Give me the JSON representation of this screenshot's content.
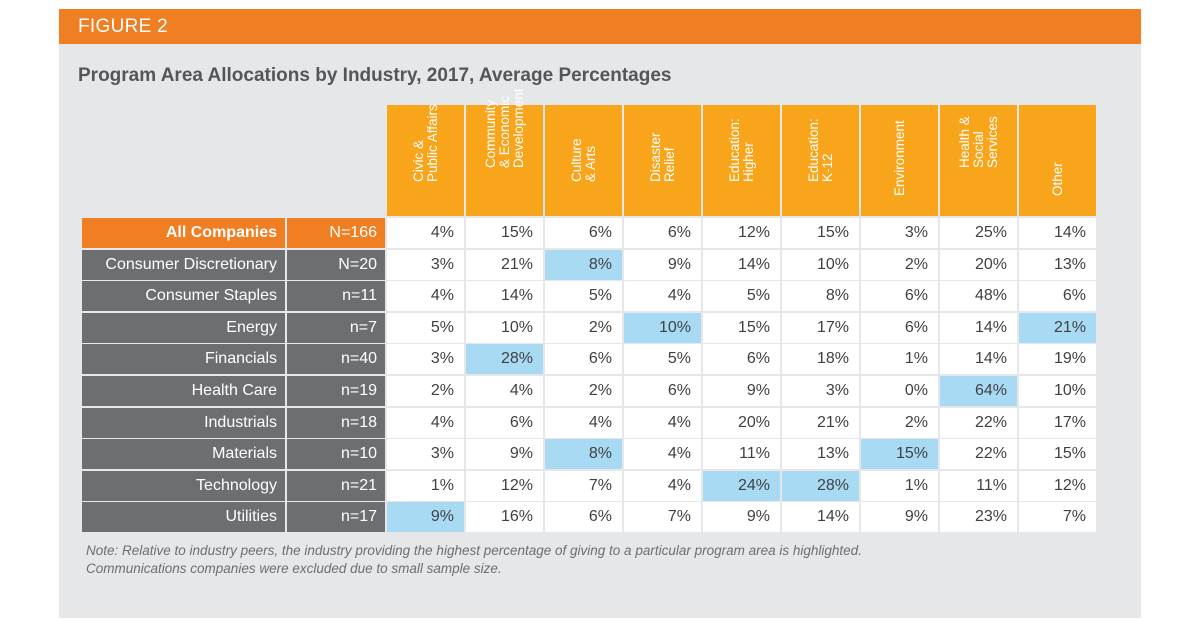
{
  "figure_label": "FIGURE 2",
  "chart_data": {
    "type": "table",
    "title": "Program Area Allocations by Industry, 2017, Average Percentages",
    "columns": [
      "Civic & Public Affairs",
      "Community & Economic Development",
      "Culture & Arts",
      "Disaster Relief",
      "Education: Higher",
      "Education: K-12",
      "Environment",
      "Health & Social Services",
      "Other"
    ],
    "column_lines": [
      [
        "Civic &",
        "Public Affairs"
      ],
      [
        "Community",
        "& Economic",
        "Development"
      ],
      [
        "Culture",
        "& Arts"
      ],
      [
        "Disaster",
        "Relief"
      ],
      [
        "Education:",
        "Higher"
      ],
      [
        "Education:",
        "K-12"
      ],
      [
        "Environment"
      ],
      [
        "Health &",
        "Social",
        "Services"
      ],
      [
        "Other"
      ]
    ],
    "rows": [
      {
        "label": "All Companies",
        "n": "N=166",
        "values": [
          "4%",
          "15%",
          "6%",
          "6%",
          "12%",
          "15%",
          "3%",
          "25%",
          "14%"
        ],
        "highlight": [],
        "summary": true
      },
      {
        "label": "Consumer Discretionary",
        "n": "N=20",
        "values": [
          "3%",
          "21%",
          "8%",
          "9%",
          "14%",
          "10%",
          "2%",
          "20%",
          "13%"
        ],
        "highlight": [
          2
        ]
      },
      {
        "label": "Consumer Staples",
        "n": "n=11",
        "values": [
          "4%",
          "14%",
          "5%",
          "4%",
          "5%",
          "8%",
          "6%",
          "48%",
          "6%"
        ],
        "highlight": []
      },
      {
        "label": "Energy",
        "n": "n=7",
        "values": [
          "5%",
          "10%",
          "2%",
          "10%",
          "15%",
          "17%",
          "6%",
          "14%",
          "21%"
        ],
        "highlight": [
          3,
          8
        ]
      },
      {
        "label": "Financials",
        "n": "n=40",
        "values": [
          "3%",
          "28%",
          "6%",
          "5%",
          "6%",
          "18%",
          "1%",
          "14%",
          "19%"
        ],
        "highlight": [
          1
        ]
      },
      {
        "label": "Health Care",
        "n": "n=19",
        "values": [
          "2%",
          "4%",
          "2%",
          "6%",
          "9%",
          "3%",
          "0%",
          "64%",
          "10%"
        ],
        "highlight": [
          7
        ]
      },
      {
        "label": "Industrials",
        "n": "n=18",
        "values": [
          "4%",
          "6%",
          "4%",
          "4%",
          "20%",
          "21%",
          "2%",
          "22%",
          "17%"
        ],
        "highlight": []
      },
      {
        "label": "Materials",
        "n": "n=10",
        "values": [
          "3%",
          "9%",
          "8%",
          "4%",
          "11%",
          "13%",
          "15%",
          "22%",
          "15%"
        ],
        "highlight": [
          2,
          6
        ]
      },
      {
        "label": "Technology",
        "n": "n=21",
        "values": [
          "1%",
          "12%",
          "7%",
          "4%",
          "24%",
          "28%",
          "1%",
          "11%",
          "12%"
        ],
        "highlight": [
          4,
          5
        ]
      },
      {
        "label": "Utilities",
        "n": "n=17",
        "values": [
          "9%",
          "16%",
          "6%",
          "7%",
          "9%",
          "14%",
          "9%",
          "23%",
          "7%"
        ],
        "highlight": [
          0
        ]
      }
    ],
    "highlight_color": "#a8dbf3",
    "header_color": "#f8a51b",
    "summary_color": "#f07e22",
    "row_label_color": "#6d6e71"
  },
  "note": {
    "line1": "Note: Relative to industry peers, the industry providing the highest percentage of giving to a particular program area is highlighted.",
    "line2": "Communications companies were excluded due to small sample size."
  }
}
